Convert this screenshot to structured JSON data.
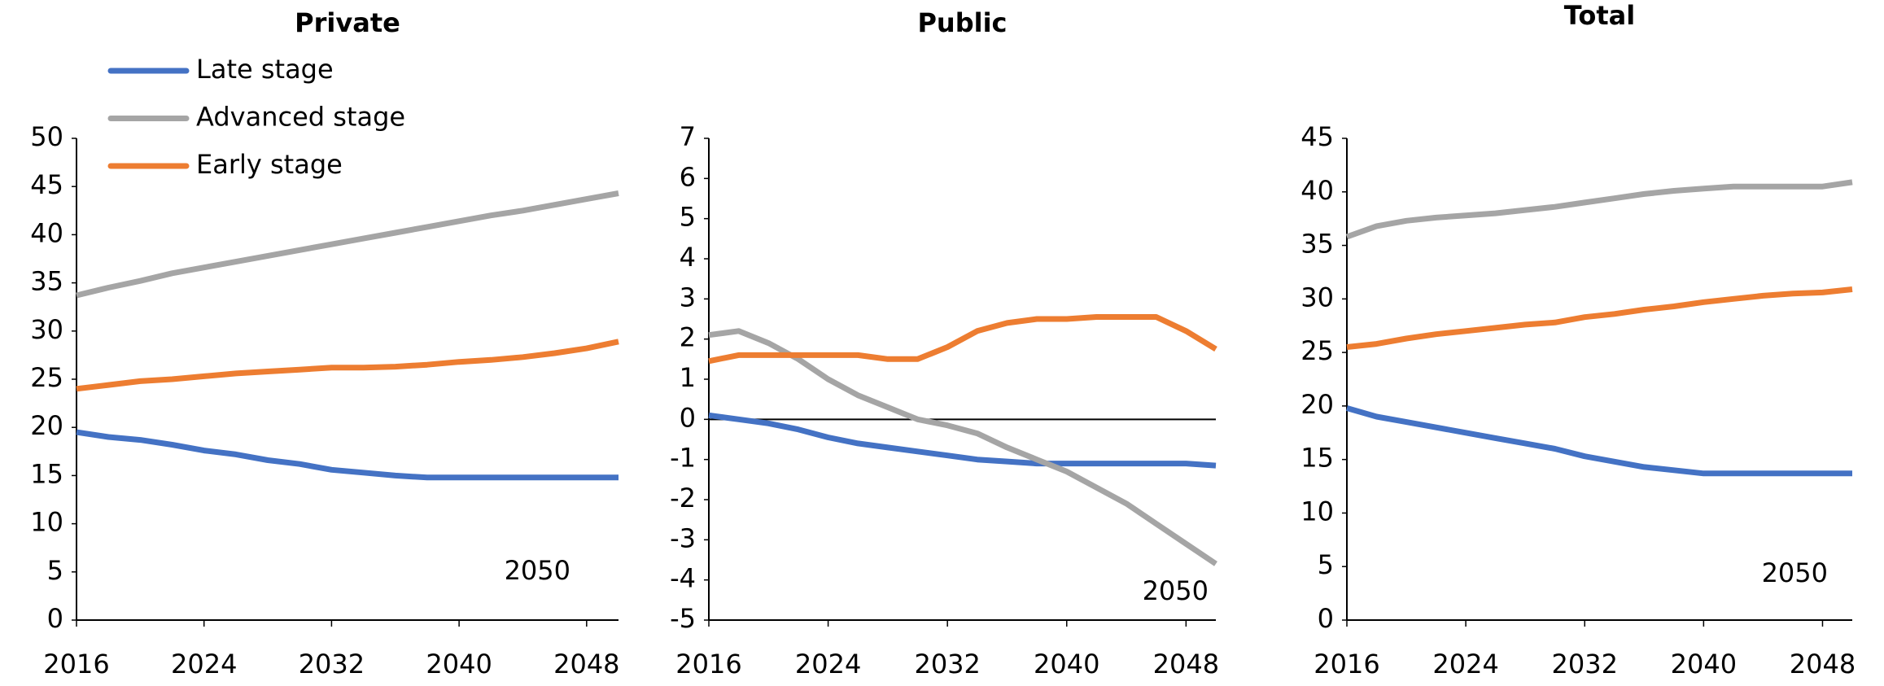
{
  "chart_data": [
    {
      "type": "line",
      "title": "Private",
      "legend": "upper-left",
      "annotation": "2050",
      "x": [
        2016,
        2018,
        2020,
        2022,
        2024,
        2026,
        2028,
        2030,
        2032,
        2034,
        2036,
        2038,
        2040,
        2042,
        2044,
        2046,
        2048,
        2050
      ],
      "xlim": [
        2016,
        2050
      ],
      "xticks": [
        2016,
        2024,
        2032,
        2040,
        2048
      ],
      "ylim": [
        0,
        50
      ],
      "yticks": [
        0,
        5,
        10,
        15,
        20,
        25,
        30,
        35,
        40,
        45,
        50
      ],
      "series": [
        {
          "name": "Late stage",
          "color": "#4472c4",
          "values": [
            19.5,
            19,
            18.7,
            18.2,
            17.6,
            17.2,
            16.6,
            16.2,
            15.6,
            15.3,
            15,
            14.8,
            14.8,
            14.8,
            14.8,
            14.8,
            14.8,
            14.8
          ]
        },
        {
          "name": "Advanced stage",
          "color": "#a5a5a5",
          "values": [
            33.7,
            34.5,
            35.2,
            36,
            36.6,
            37.2,
            37.8,
            38.4,
            39,
            39.6,
            40.2,
            40.8,
            41.4,
            42,
            42.5,
            43.1,
            43.7,
            44.3
          ]
        },
        {
          "name": "Early stage",
          "color": "#ed7d31",
          "values": [
            24,
            24.4,
            24.8,
            25,
            25.3,
            25.6,
            25.8,
            26,
            26.2,
            26.2,
            26.3,
            26.5,
            26.8,
            27,
            27.3,
            27.7,
            28.2,
            28.9
          ]
        }
      ]
    },
    {
      "type": "line",
      "title": "Public",
      "annotation": "2050",
      "zero_line": true,
      "x": [
        2016,
        2018,
        2020,
        2022,
        2024,
        2026,
        2028,
        2030,
        2032,
        2034,
        2036,
        2038,
        2040,
        2042,
        2044,
        2046,
        2048,
        2050
      ],
      "xlim": [
        2016,
        2050
      ],
      "xticks": [
        2016,
        2024,
        2032,
        2040,
        2048
      ],
      "ylim": [
        -5,
        7
      ],
      "yticks": [
        -5,
        -4,
        -3,
        -2,
        -1,
        0,
        1,
        2,
        3,
        4,
        5,
        6,
        7
      ],
      "series": [
        {
          "color": "#4472c4",
          "values": [
            0.1,
            0,
            -0.1,
            -0.25,
            -0.45,
            -0.6,
            -0.7,
            -0.8,
            -0.9,
            -1,
            -1.05,
            -1.1,
            -1.1,
            -1.1,
            -1.1,
            -1.1,
            -1.1,
            -1.15
          ]
        },
        {
          "color": "#a5a5a5",
          "values": [
            2.1,
            2.2,
            1.9,
            1.5,
            1,
            0.6,
            0.3,
            0,
            -0.15,
            -0.35,
            -0.7,
            -1,
            -1.3,
            -1.7,
            -2.1,
            -2.6,
            -3.1,
            -3.6
          ]
        },
        {
          "color": "#ed7d31",
          "values": [
            1.45,
            1.6,
            1.6,
            1.6,
            1.6,
            1.6,
            1.5,
            1.5,
            1.8,
            2.2,
            2.4,
            2.5,
            2.5,
            2.55,
            2.55,
            2.55,
            2.2,
            1.75
          ]
        }
      ]
    },
    {
      "type": "line",
      "title": "Total",
      "annotation": "2050",
      "x": [
        2016,
        2018,
        2020,
        2022,
        2024,
        2026,
        2028,
        2030,
        2032,
        2034,
        2036,
        2038,
        2040,
        2042,
        2044,
        2046,
        2048,
        2050
      ],
      "xlim": [
        2016,
        2050
      ],
      "xticks": [
        2016,
        2024,
        2032,
        2040,
        2048
      ],
      "ylim": [
        0,
        45
      ],
      "yticks": [
        0,
        5,
        10,
        15,
        20,
        25,
        30,
        35,
        40,
        45
      ],
      "series": [
        {
          "color": "#4472c4",
          "values": [
            19.8,
            19,
            18.5,
            18,
            17.5,
            17,
            16.5,
            16,
            15.3,
            14.8,
            14.3,
            14,
            13.7,
            13.7,
            13.7,
            13.7,
            13.7,
            13.7
          ]
        },
        {
          "color": "#a5a5a5",
          "values": [
            35.8,
            36.8,
            37.3,
            37.6,
            37.8,
            38,
            38.3,
            38.6,
            39,
            39.4,
            39.8,
            40.1,
            40.3,
            40.5,
            40.5,
            40.5,
            40.5,
            40.9
          ]
        },
        {
          "color": "#ed7d31",
          "values": [
            25.5,
            25.8,
            26.3,
            26.7,
            27,
            27.3,
            27.6,
            27.8,
            28.3,
            28.6,
            29,
            29.3,
            29.7,
            30,
            30.3,
            30.5,
            30.6,
            30.9
          ]
        }
      ]
    }
  ]
}
